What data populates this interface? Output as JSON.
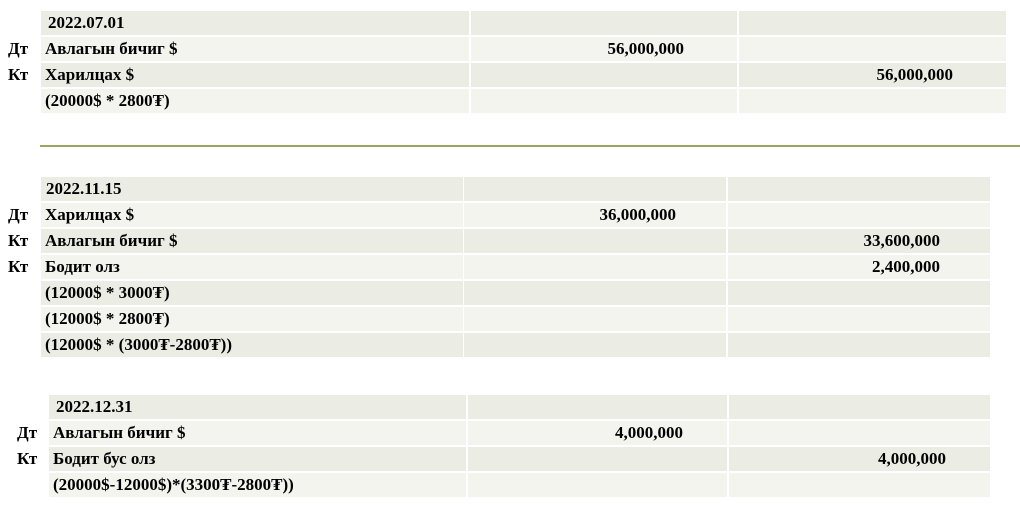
{
  "entries": [
    {
      "rows": [
        {
          "prefix": "",
          "desc": "2022.07.01",
          "debit": "",
          "credit": ""
        },
        {
          "prefix": "Дт",
          "desc": "Авлагын бичиг $",
          "debit": "56,000,000",
          "credit": ""
        },
        {
          "prefix": "Кт",
          "desc": "Харилцах $",
          "debit": "",
          "credit": "56,000,000"
        },
        {
          "prefix": "",
          "desc": "(20000$ * 2800₮)",
          "debit": "",
          "credit": ""
        }
      ]
    },
    {
      "rows": [
        {
          "prefix": "",
          "desc": "2022.11.15",
          "debit": "",
          "credit": ""
        },
        {
          "prefix": "Дт",
          "desc": "Харилцах $",
          "debit": "36,000,000",
          "credit": ""
        },
        {
          "prefix": "Кт",
          "desc": "Авлагын бичиг $",
          "debit": "",
          "credit": "33,600,000"
        },
        {
          "prefix": "Кт",
          "desc": "Бодит олз",
          "debit": "",
          "credit": "2,400,000"
        },
        {
          "prefix": "",
          "desc": "(12000$ * 3000₮)",
          "debit": "",
          "credit": ""
        },
        {
          "prefix": "",
          "desc": "(12000$ * 2800₮)",
          "debit": "",
          "credit": ""
        },
        {
          "prefix": "",
          "desc": "(12000$ * (3000₮-2800₮))",
          "debit": "",
          "credit": ""
        }
      ]
    },
    {
      "rows": [
        {
          "prefix": "",
          "desc": "2022.12.31",
          "debit": "",
          "credit": ""
        },
        {
          "prefix": "Дт",
          "desc": "Авлагын бичиг $",
          "debit": "4,000,000",
          "credit": ""
        },
        {
          "prefix": "Кт",
          "desc": "Бодит бус олз",
          "debit": "",
          "credit": "4,000,000"
        },
        {
          "prefix": "",
          "desc": "(20000$-12000$)*(3300₮-2800₮))",
          "debit": "",
          "credit": ""
        }
      ]
    }
  ],
  "colors": {
    "row_odd": "#ebede5",
    "row_even": "#f3f4ee",
    "divider": "#98a863"
  }
}
